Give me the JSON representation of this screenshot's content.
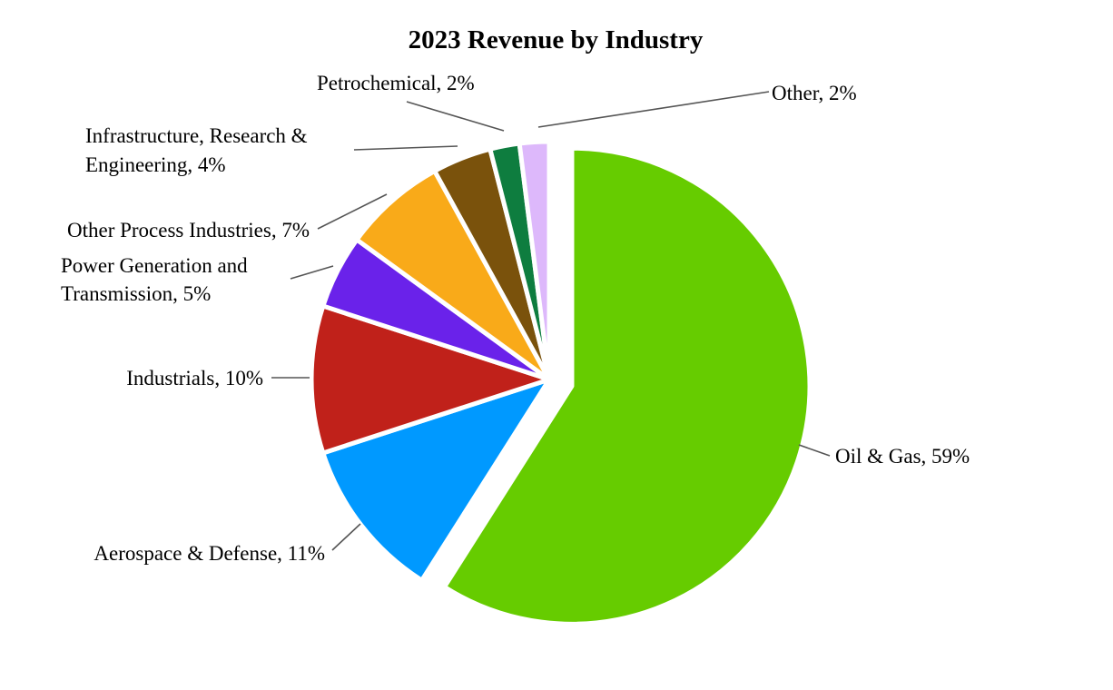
{
  "chart_data": {
    "type": "pie",
    "title": "2023 Revenue by Industry",
    "start": "12 o'clock",
    "direction": "clockwise",
    "exploded_slice": "Oil & Gas",
    "slices": [
      {
        "key": "oil-gas",
        "name": "Oil & Gas",
        "value": 59,
        "label_lines": [
          "Oil & Gas, 59%"
        ],
        "color": "#66cc00"
      },
      {
        "key": "aerospace-defense",
        "name": "Aerospace & Defense",
        "value": 11,
        "label_lines": [
          "Aerospace & Defense, 11%"
        ],
        "color": "#0099ff"
      },
      {
        "key": "industrials",
        "name": "Industrials",
        "value": 10,
        "label_lines": [
          "Industrials, 10%"
        ],
        "color": "#c0211a"
      },
      {
        "key": "power-generation",
        "name": "Power Generation and Transmission",
        "value": 5,
        "label_lines": [
          "Power Generation and",
          "Transmission, 5%"
        ],
        "color": "#6a22ea"
      },
      {
        "key": "other-process",
        "name": "Other Process Industries",
        "value": 7,
        "label_lines": [
          "Other Process Industries, 7%"
        ],
        "color": "#f9aa19"
      },
      {
        "key": "infrastructure",
        "name": "Infrastructure, Research & Engineering",
        "value": 4,
        "label_lines": [
          "Infrastructure, Research &",
          "Engineering, 4%"
        ],
        "color": "#7a520c"
      },
      {
        "key": "petrochemical",
        "name": "Petrochemical",
        "value": 2,
        "label_lines": [
          "Petrochemical, 2%"
        ],
        "color": "#0e7d3f"
      },
      {
        "key": "other",
        "name": "Other",
        "value": 2,
        "label_lines": [
          "Other, 2%"
        ],
        "color": "#ddb8fb"
      }
    ]
  }
}
